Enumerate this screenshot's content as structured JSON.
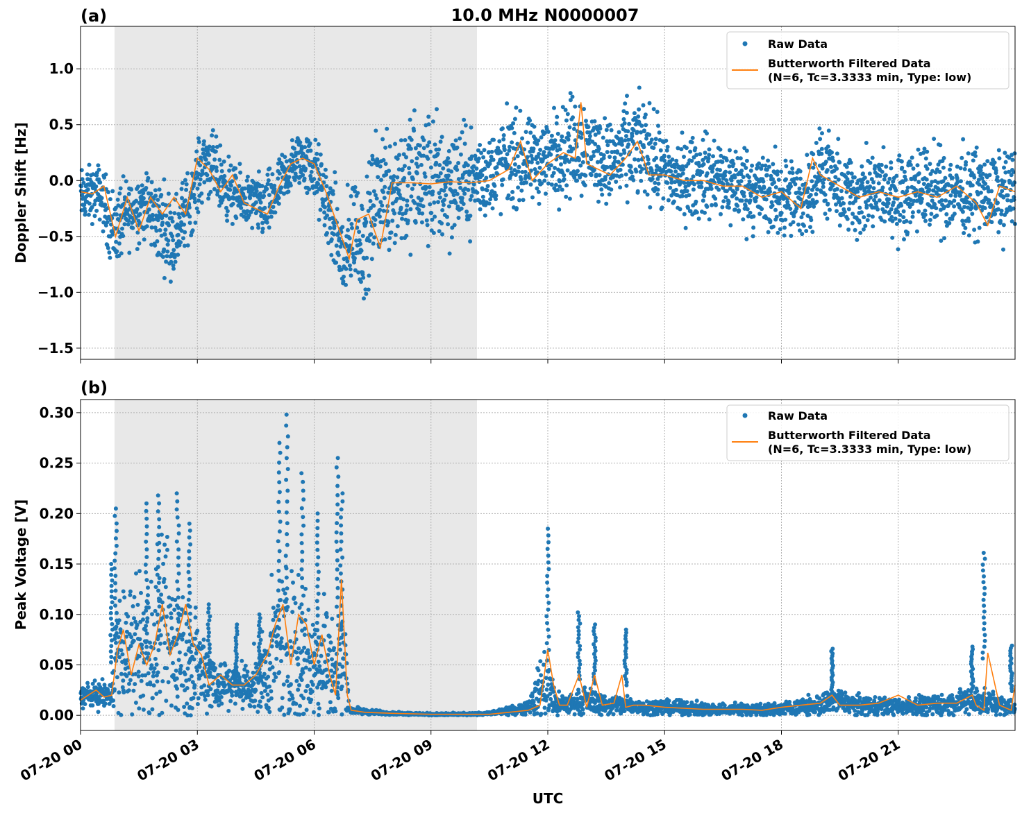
{
  "figure": {
    "title": "10.0 MHz N0000007",
    "xlabel": "UTC",
    "x_ticks": [
      "07-20 00",
      "07-20 03",
      "07-20 06",
      "07-20 09",
      "07-20 12",
      "07-20 15",
      "07-20 18",
      "07-20 21"
    ],
    "night_shading": {
      "start_hour": 0.85,
      "end_hour": 10.15,
      "color": "#e8e8e8"
    },
    "colors": {
      "raw": "#1f77b4",
      "filtered": "#ff7f0e",
      "grid": "#b0b0b0"
    }
  },
  "legend": {
    "raw_label": "Raw Data",
    "filtered_line1": "Butterworth Filtered Data",
    "filtered_line2": "(N=6, Tc=3.3333 min, Type: low)"
  },
  "chart_data": [
    {
      "type": "scatter",
      "panel_label": "(a)",
      "ylabel": "Doppler Shift [Hz]",
      "xlim_hours": [
        0,
        24
      ],
      "ylim": [
        -1.6,
        1.38
      ],
      "y_ticks": [
        "1.0",
        "0.5",
        "0.0",
        "−0.5",
        "−1.0",
        "−1.5"
      ],
      "grid": true,
      "legend_position": "top-right",
      "series": [
        {
          "name": "Raw Data",
          "kind": "points",
          "note_x_units": "hours UTC on 07-20",
          "x": [
            0,
            0.5,
            0.85,
            1.2,
            1.6,
            2.0,
            2.4,
            2.8,
            3.2,
            3.6,
            4.0,
            4.4,
            4.8,
            5.2,
            5.6,
            6.0,
            6.4,
            6.8,
            7.0,
            7.3,
            7.6,
            8.0,
            8.5,
            9.0,
            9.5,
            10.0,
            10.5,
            11.0,
            11.5,
            12.0,
            12.5,
            12.8,
            13.2,
            13.6,
            14.0,
            14.5,
            15.0,
            15.5,
            16.0,
            16.5,
            17.0,
            17.5,
            18.0,
            18.5,
            19.0,
            19.5,
            20.0,
            20.5,
            21.0,
            21.5,
            22.0,
            22.5,
            23.0,
            23.5,
            24.0
          ],
          "y": [
            -0.15,
            -0.1,
            -0.45,
            -0.3,
            -0.2,
            -0.35,
            -0.5,
            -0.2,
            0.2,
            0.0,
            -0.15,
            -0.2,
            -0.25,
            0.0,
            0.2,
            0.1,
            -0.3,
            -0.75,
            -0.4,
            -0.6,
            -0.1,
            -0.05,
            -0.02,
            0.0,
            -0.02,
            0.0,
            0.05,
            0.2,
            0.15,
            0.2,
            0.3,
            0.35,
            0.25,
            0.15,
            0.25,
            0.3,
            0.05,
            0.0,
            0.05,
            0.0,
            -0.05,
            -0.1,
            -0.15,
            -0.2,
            0.1,
            -0.1,
            -0.15,
            -0.1,
            -0.15,
            -0.05,
            -0.1,
            -0.1,
            -0.1,
            -0.15,
            -0.05
          ],
          "spread": [
            0.2,
            0.2,
            0.3,
            0.25,
            0.25,
            0.3,
            0.3,
            0.25,
            0.25,
            0.25,
            0.2,
            0.2,
            0.25,
            0.2,
            0.2,
            0.25,
            0.3,
            0.4,
            0.4,
            0.4,
            0.45,
            0.5,
            0.5,
            0.5,
            0.45,
            0.35,
            0.3,
            0.35,
            0.3,
            0.3,
            0.35,
            0.4,
            0.3,
            0.3,
            0.35,
            0.35,
            0.3,
            0.3,
            0.3,
            0.3,
            0.3,
            0.3,
            0.3,
            0.3,
            0.3,
            0.3,
            0.3,
            0.3,
            0.3,
            0.3,
            0.3,
            0.3,
            0.3,
            0.3,
            0.3
          ]
        },
        {
          "name": "Butterworth Filtered Data",
          "kind": "line",
          "x": [
            0,
            0.3,
            0.6,
            0.9,
            1.2,
            1.5,
            1.8,
            2.1,
            2.4,
            2.7,
            3.0,
            3.3,
            3.6,
            3.9,
            4.2,
            4.5,
            4.8,
            5.1,
            5.4,
            5.7,
            6.0,
            6.3,
            6.6,
            6.9,
            7.1,
            7.4,
            7.7,
            8.0,
            8.5,
            9.0,
            9.5,
            10.0,
            10.5,
            11.0,
            11.3,
            11.6,
            12.0,
            12.4,
            12.7,
            12.85,
            13.0,
            13.3,
            13.6,
            14.0,
            14.3,
            14.6,
            15.0,
            15.5,
            16.0,
            16.5,
            17.0,
            17.5,
            18.0,
            18.5,
            18.8,
            19.0,
            19.5,
            20.0,
            20.5,
            21.0,
            21.5,
            22.0,
            22.5,
            23.0,
            23.3,
            23.6,
            24.0
          ],
          "y": [
            -0.1,
            -0.12,
            -0.05,
            -0.5,
            -0.15,
            -0.45,
            -0.15,
            -0.3,
            -0.15,
            -0.3,
            0.2,
            0.1,
            -0.1,
            0.05,
            -0.2,
            -0.25,
            -0.3,
            -0.05,
            0.15,
            0.2,
            0.15,
            -0.1,
            -0.4,
            -0.7,
            -0.35,
            -0.3,
            -0.6,
            -0.02,
            -0.02,
            -0.03,
            -0.01,
            -0.02,
            0.0,
            0.1,
            0.35,
            0.0,
            0.15,
            0.25,
            0.2,
            0.7,
            0.15,
            0.1,
            0.05,
            0.2,
            0.35,
            0.05,
            0.05,
            0.0,
            0.0,
            -0.05,
            -0.05,
            -0.15,
            -0.1,
            -0.25,
            0.2,
            0.05,
            -0.05,
            -0.15,
            -0.1,
            -0.15,
            -0.1,
            -0.15,
            -0.05,
            -0.2,
            -0.4,
            -0.05,
            -0.1
          ]
        }
      ]
    },
    {
      "type": "scatter",
      "panel_label": "(b)",
      "ylabel": "Peak Voltage [V]",
      "xlim_hours": [
        0,
        24
      ],
      "ylim": [
        -0.015,
        0.313
      ],
      "y_ticks": [
        "0.30",
        "0.25",
        "0.20",
        "0.15",
        "0.10",
        "0.05",
        "0.00"
      ],
      "grid": true,
      "legend_position": "top-right",
      "series": [
        {
          "name": "Raw Data",
          "kind": "points",
          "x": [
            0,
            0.5,
            0.8,
            0.9,
            1.2,
            1.5,
            1.8,
            2.1,
            2.4,
            2.7,
            3.0,
            3.3,
            3.6,
            4.0,
            4.4,
            4.8,
            5.0,
            5.3,
            5.6,
            6.0,
            6.3,
            6.6,
            6.8,
            6.9,
            7.5,
            8.0,
            9.0,
            10.0,
            10.5,
            11.0,
            11.5,
            11.9,
            12.0,
            12.2,
            12.5,
            13.0,
            13.5,
            14.0,
            14.5,
            15.0,
            16.0,
            17.0,
            18.0,
            19.0,
            19.3,
            20.0,
            20.5,
            21.0,
            21.5,
            22.0,
            22.5,
            23.0,
            23.5,
            24.0
          ],
          "y": [
            0.02,
            0.02,
            0.02,
            0.06,
            0.06,
            0.07,
            0.06,
            0.08,
            0.07,
            0.06,
            0.05,
            0.04,
            0.03,
            0.03,
            0.03,
            0.04,
            0.06,
            0.07,
            0.06,
            0.05,
            0.06,
            0.04,
            0.06,
            0.005,
            0.003,
            0.002,
            0.001,
            0.001,
            0.002,
            0.004,
            0.008,
            0.03,
            0.03,
            0.01,
            0.01,
            0.015,
            0.01,
            0.01,
            0.008,
            0.008,
            0.006,
            0.006,
            0.006,
            0.01,
            0.015,
            0.01,
            0.01,
            0.008,
            0.01,
            0.01,
            0.012,
            0.015,
            0.01,
            0.008
          ],
          "spread": [
            0.01,
            0.01,
            0.01,
            0.05,
            0.05,
            0.06,
            0.06,
            0.07,
            0.07,
            0.06,
            0.04,
            0.03,
            0.02,
            0.02,
            0.02,
            0.04,
            0.06,
            0.07,
            0.06,
            0.05,
            0.05,
            0.04,
            0.04,
            0.003,
            0.002,
            0.001,
            0.001,
            0.001,
            0.001,
            0.003,
            0.006,
            0.03,
            0.03,
            0.01,
            0.008,
            0.01,
            0.008,
            0.008,
            0.006,
            0.006,
            0.005,
            0.005,
            0.005,
            0.008,
            0.01,
            0.008,
            0.008,
            0.006,
            0.008,
            0.008,
            0.01,
            0.012,
            0.008,
            0.006
          ],
          "peaks": [
            [
              0.8,
              0.15
            ],
            [
              0.9,
              0.205
            ],
            [
              1.7,
              0.21
            ],
            [
              2.0,
              0.218
            ],
            [
              2.5,
              0.22
            ],
            [
              2.8,
              0.19
            ],
            [
              3.3,
              0.11
            ],
            [
              4.0,
              0.09
            ],
            [
              4.6,
              0.1
            ],
            [
              5.1,
              0.27
            ],
            [
              5.3,
              0.298
            ],
            [
              5.7,
              0.24
            ],
            [
              6.1,
              0.2
            ],
            [
              6.6,
              0.255
            ],
            [
              6.7,
              0.22
            ],
            [
              12.0,
              0.185
            ],
            [
              12.8,
              0.102
            ],
            [
              13.2,
              0.09
            ],
            [
              14.0,
              0.085
            ],
            [
              19.3,
              0.066
            ],
            [
              22.9,
              0.068
            ],
            [
              23.2,
              0.161
            ],
            [
              23.9,
              0.069
            ]
          ]
        },
        {
          "name": "Butterworth Filtered Data",
          "kind": "line",
          "x": [
            0,
            0.2,
            0.4,
            0.6,
            0.8,
            0.95,
            1.1,
            1.3,
            1.5,
            1.7,
            1.9,
            2.1,
            2.3,
            2.5,
            2.7,
            2.9,
            3.1,
            3.3,
            3.6,
            3.9,
            4.2,
            4.5,
            4.8,
            5.0,
            5.2,
            5.4,
            5.6,
            5.8,
            6.0,
            6.2,
            6.4,
            6.55,
            6.7,
            6.85,
            6.95,
            7.3,
            8.0,
            9.0,
            10.0,
            10.5,
            11.0,
            11.5,
            11.8,
            12.0,
            12.15,
            12.3,
            12.5,
            12.8,
            13.0,
            13.2,
            13.4,
            13.7,
            13.9,
            14.0,
            14.2,
            14.5,
            15.0,
            16.0,
            17.0,
            17.5,
            18.0,
            18.5,
            19.0,
            19.3,
            19.5,
            20.0,
            20.5,
            21.0,
            21.5,
            22.0,
            22.5,
            22.9,
            23.0,
            23.2,
            23.3,
            23.6,
            23.9,
            24.0
          ],
          "y": [
            0.015,
            0.02,
            0.025,
            0.018,
            0.02,
            0.065,
            0.085,
            0.04,
            0.07,
            0.05,
            0.07,
            0.11,
            0.06,
            0.08,
            0.11,
            0.07,
            0.06,
            0.03,
            0.04,
            0.03,
            0.03,
            0.04,
            0.06,
            0.09,
            0.11,
            0.05,
            0.1,
            0.09,
            0.05,
            0.08,
            0.04,
            0.02,
            0.135,
            0.02,
            0.005,
            0.003,
            0.002,
            0.001,
            0.001,
            0.001,
            0.003,
            0.005,
            0.01,
            0.065,
            0.03,
            0.01,
            0.01,
            0.04,
            0.008,
            0.04,
            0.01,
            0.012,
            0.04,
            0.008,
            0.01,
            0.01,
            0.008,
            0.006,
            0.006,
            0.005,
            0.008,
            0.01,
            0.012,
            0.02,
            0.01,
            0.01,
            0.012,
            0.02,
            0.01,
            0.012,
            0.012,
            0.02,
            0.01,
            0.005,
            0.062,
            0.01,
            0.005,
            0.03
          ]
        }
      ]
    }
  ]
}
